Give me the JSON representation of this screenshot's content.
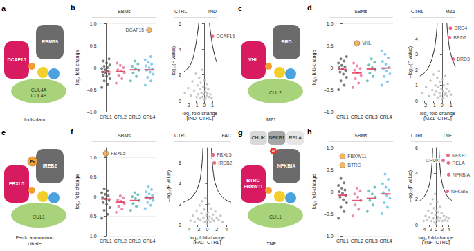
{
  "diagrams": [
    {
      "panel_label": "a",
      "scaffold": [
        "CUL4A",
        "CUL4B"
      ],
      "receptor": [
        "DCAF15"
      ],
      "substrate": "RBM39",
      "compound": "Indisulam"
    },
    {
      "panel_label": "c",
      "scaffold": [
        "CUL2"
      ],
      "receptor": [
        "VHL"
      ],
      "substrate": "BRD",
      "compound": "MZ1"
    },
    {
      "panel_label": "e",
      "scaffold": [
        "CUL1"
      ],
      "receptor": [
        "FBXL5"
      ],
      "substrate": "IREB2",
      "cofactor": "Fe",
      "compound": "Ferric ammonium citrate"
    },
    {
      "panel_label": "g",
      "scaffold": [
        "CUL1"
      ],
      "receptor": [
        "BTRC",
        "FBXW11"
      ],
      "substrate": "NFKBIA",
      "modification": "P",
      "partners": [
        "CHUK",
        "NFKB1",
        "RELA"
      ],
      "compound": "TNF"
    }
  ],
  "chart_data": [
    {
      "type": "strip",
      "panel_label": "b",
      "title": "SBMs",
      "ylabel": "log₂ fold-change",
      "categories": [
        "CRL1",
        "CRL2",
        "CRL3",
        "CRL4"
      ],
      "colors": [
        "#4d4d4d",
        "#e8638f",
        "#3fb0a6",
        "#5bbde3"
      ],
      "values": [
        [
          -0.45,
          -0.38,
          -0.3,
          -0.25,
          -0.2,
          -0.18,
          -0.15,
          -0.12,
          -0.1,
          -0.08,
          -0.05,
          -0.02,
          0,
          0.03,
          0.06,
          0.1,
          0.15,
          0.2
        ],
        [
          -0.35,
          -0.25,
          -0.18,
          -0.12,
          -0.08,
          -0.05,
          0,
          0.05,
          0.1
        ],
        [
          -0.3,
          -0.2,
          -0.12,
          -0.06,
          -0.02,
          0.03,
          0.08,
          0.15
        ],
        [
          -0.4,
          -0.3,
          -0.22,
          -0.15,
          -0.1,
          -0.06,
          -0.03,
          0,
          0.04,
          0.08,
          0.12,
          0.18,
          0.25
        ]
      ],
      "means": [
        -0.1,
        -0.09,
        -0.05,
        -0.05
      ],
      "highlights": [
        {
          "name": "DCAF15",
          "category": "CRL4",
          "value": 0.85,
          "color": "#f0a33a"
        }
      ],
      "ylim": [
        -1,
        1
      ],
      "yticks": [
        {
          "value": -1,
          "label": "–1.0"
        },
        {
          "value": -0.5,
          "label": "–0.5"
        },
        0,
        0.5,
        {
          "value": 1,
          "label": "1.0"
        }
      ],
      "grid": true
    },
    {
      "type": "scatter",
      "header": [
        "CTRL",
        "IND"
      ],
      "xlabel": "log₂ fold-change (IND–CTRL)",
      "ylabel": "–log₁₀(P value)",
      "color": "#bdbdbd",
      "x": [
        -2.3,
        -1.9,
        -1.6,
        -1.4,
        -1.2,
        -1.0,
        -0.9,
        -0.8,
        -0.7,
        -0.6,
        -0.5,
        -0.45,
        -0.4,
        -0.3,
        -0.25,
        -0.2,
        -0.1,
        -0.05,
        0,
        0.05,
        0.1,
        0.15,
        0.2,
        0.3,
        0.35,
        0.4,
        0.5,
        0.6,
        0.75,
        0.9
      ],
      "y": [
        0.6,
        1.0,
        0.4,
        1.5,
        0.8,
        2.1,
        0.3,
        1.2,
        0.5,
        1.8,
        0.9,
        0.2,
        1.4,
        0.6,
        2.4,
        0.3,
        1.1,
        0.5,
        0.1,
        1.6,
        0.7,
        0.2,
        1.0,
        0.4,
        1.3,
        0.6,
        0.9,
        0.3,
        0.5,
        0.2
      ],
      "threshold": {
        "left": {
          "x": [
            -2.5,
            -2,
            -1.5,
            -1.1,
            -0.8,
            -0.65
          ],
          "y": [
            2.2,
            2.5,
            3,
            4,
            5.2,
            6
          ]
        },
        "right": {
          "x": [
            0.65,
            0.8,
            1.1,
            1.5
          ],
          "y": [
            6,
            5.2,
            4,
            3
          ]
        }
      },
      "highlights": [
        {
          "name": "DCAF15",
          "x": 1.0,
          "y": 5.0,
          "color": "#e0456e"
        }
      ],
      "xlim": [
        -2.5,
        1.5
      ],
      "xticks": [
        {
          "value": -2,
          "label": "–2"
        },
        {
          "value": -1,
          "label": "–1"
        },
        0,
        1
      ],
      "ylim": [
        0,
        6
      ],
      "yticks": [
        0,
        2,
        4,
        6
      ]
    },
    {
      "type": "strip",
      "panel_label": "d",
      "title": "SBMs",
      "ylabel": "log₂ fold-change",
      "categories": [
        "CRL1",
        "CRL2",
        "CRL3",
        "CRL4"
      ],
      "colors": [
        "#4d4d4d",
        "#e8638f",
        "#3fb0a6",
        "#5bbde3"
      ],
      "values": [
        [
          -0.5,
          -0.4,
          -0.3,
          -0.22,
          -0.15,
          -0.1,
          -0.07,
          -0.03,
          0,
          0.02,
          0.05,
          0.1,
          0.15,
          0.2,
          0.25
        ],
        [
          -0.45,
          -0.35,
          -0.25,
          -0.18,
          -0.12,
          -0.06,
          -0.02,
          0.04,
          0.1
        ],
        [
          -0.3,
          -0.2,
          -0.12,
          -0.05,
          0,
          0.06,
          0.12,
          0.2
        ],
        [
          -0.4,
          -0.32,
          -0.2,
          -0.14,
          -0.08,
          -0.03,
          0.02,
          0.08,
          0.14,
          0.22,
          0.3,
          0.38
        ]
      ],
      "means": [
        -0.04,
        -0.12,
        -0.03,
        -0.01
      ],
      "highlights": [
        {
          "name": "VHL",
          "category": "CRL2",
          "value": 0.55,
          "color": "#f0a33a"
        }
      ],
      "ylim": [
        -1,
        1
      ],
      "yticks": [
        {
          "value": -1,
          "label": "–1.0"
        },
        {
          "value": -0.5,
          "label": "–0.5"
        },
        0,
        0.5,
        {
          "value": 1,
          "label": "1.0"
        }
      ],
      "grid": true
    },
    {
      "type": "scatter",
      "header": [
        "CTRL",
        "MZ1"
      ],
      "xlabel": "log₂ fold-change (MZ1–CTRL)",
      "ylabel": "–log₁₀(P value)",
      "color": "#bdbdbd",
      "x": [
        -2.2,
        -1.8,
        -1.5,
        -1.3,
        -1.1,
        -0.95,
        -0.85,
        -0.75,
        -0.65,
        -0.55,
        -0.5,
        -0.42,
        -0.35,
        -0.28,
        -0.2,
        -0.15,
        -0.08,
        0,
        0.05,
        0.1,
        0.15,
        0.22,
        0.28,
        0.35,
        0.42,
        0.5,
        0.58,
        0.65,
        0.8,
        1.0
      ],
      "y": [
        0.5,
        0.9,
        0.3,
        1.3,
        0.7,
        1.7,
        0.4,
        1.0,
        0.6,
        1.5,
        0.2,
        0.9,
        1.9,
        0.5,
        1.2,
        0.3,
        0.8,
        0.1,
        1.4,
        0.6,
        0.2,
        1.0,
        0.4,
        1.6,
        0.5,
        0.8,
        0.3,
        1.1,
        0.6,
        0.4
      ],
      "threshold": {
        "left": {
          "x": [
            -2.5,
            -2,
            -1.5,
            -1,
            -0.7,
            -0.55
          ],
          "y": [
            1.6,
            1.8,
            2.2,
            3,
            4,
            5
          ]
        },
        "right": {
          "x": [
            0.55,
            0.7,
            1,
            1.5
          ],
          "y": [
            5,
            4,
            3,
            2.2
          ]
        }
      },
      "highlights": [
        {
          "name": "BRD4",
          "x": 0.95,
          "y": 4.7,
          "color": "#e0456e"
        },
        {
          "name": "BRD2",
          "x": 0.85,
          "y": 4.1,
          "color": "#e0456e"
        },
        {
          "name": "BRD3",
          "x": 1.25,
          "y": 2.7,
          "color": "#e0456e"
        }
      ],
      "xlim": [
        -2.5,
        1.5
      ],
      "xticks": [
        {
          "value": -2,
          "label": "–2"
        },
        {
          "value": -1,
          "label": "–1"
        },
        0,
        1
      ],
      "ylim": [
        0,
        5
      ],
      "yticks": [
        0,
        1,
        2,
        3,
        4
      ]
    },
    {
      "type": "strip",
      "panel_label": "f",
      "title": "SBMs",
      "ylabel": "log₂ fold-change",
      "categories": [
        "CRL1",
        "CRL2",
        "CRL3",
        "CRL4"
      ],
      "colors": [
        "#4d4d4d",
        "#e8638f",
        "#3fb0a6",
        "#5bbde3"
      ],
      "values": [
        [
          -0.55,
          -0.45,
          -0.35,
          -0.28,
          -0.2,
          -0.15,
          -0.1,
          -0.06,
          -0.02,
          0.02,
          0.06,
          0.1,
          0.15,
          0.2
        ],
        [
          -0.4,
          -0.32,
          -0.25,
          -0.18,
          -0.12,
          -0.08,
          -0.03,
          0.02
        ],
        [
          -0.35,
          -0.25,
          -0.18,
          -0.1,
          -0.05,
          0,
          0.05,
          0.1
        ],
        [
          -0.3,
          -0.22,
          -0.15,
          -0.1,
          -0.05,
          -0.01,
          0.03,
          0.07,
          0.12,
          0.18,
          0.25
        ]
      ],
      "means": [
        -0.06,
        -0.14,
        -0.1,
        -0.03
      ],
      "highlights": [
        {
          "name": "FBXL5",
          "category": "CRL1",
          "value": 1.1,
          "color": "#f0a33a"
        }
      ],
      "ylim": [
        -1,
        1.25
      ],
      "yticks": [
        {
          "value": -1,
          "label": "–1.0"
        },
        {
          "value": -0.5,
          "label": "–0.5"
        },
        0,
        0.5,
        {
          "value": 1,
          "label": "1.0"
        }
      ],
      "grid": true
    },
    {
      "type": "scatter",
      "header": [
        "CTRL",
        "FAC"
      ],
      "xlabel": "log₂ fold-change (FAC–CTRL)",
      "ylabel": "–log₁₀(P value)",
      "color": "#bdbdbd",
      "x": [
        -3.5,
        -3,
        -2.6,
        -2.2,
        -1.9,
        -1.6,
        -1.4,
        -1.2,
        -1,
        -0.8,
        -0.65,
        -0.5,
        -0.35,
        -0.2,
        -0.1,
        0,
        0.1,
        0.2,
        0.35,
        0.5,
        0.65,
        0.8,
        1,
        1.2,
        1.4,
        1.7,
        2,
        2.4,
        2.8,
        3.2
      ],
      "y": [
        0.4,
        0.9,
        0.3,
        1.4,
        0.6,
        1.9,
        0.5,
        1.1,
        2.3,
        0.7,
        1.5,
        0.3,
        2.6,
        0.9,
        0.4,
        0.1,
        1.2,
        0.5,
        2.0,
        0.8,
        0.3,
        1.6,
        0.6,
        1.0,
        0.4,
        1.3,
        0.7,
        0.5,
        0.9,
        0.3
      ],
      "threshold": {
        "left": {
          "x": [
            -5,
            -4,
            -3,
            -2,
            -1.3,
            -0.9
          ],
          "y": [
            2.2,
            2.4,
            2.8,
            3.6,
            5,
            7.5
          ]
        },
        "right": {
          "x": [
            0.9,
            1.3,
            2,
            3,
            4,
            5
          ],
          "y": [
            7.5,
            5,
            3.6,
            2.8,
            2.4,
            2.2
          ]
        }
      },
      "highlights": [
        {
          "name": "FBXL5",
          "x": 1.2,
          "y": 6.8,
          "color": "#e0456e"
        },
        {
          "name": "IREB2",
          "x": 1.5,
          "y": 6.0,
          "color": "#e0456e"
        }
      ],
      "xlim": [
        -5,
        5
      ],
      "xticks": [
        {
          "value": -4,
          "label": "–4"
        },
        {
          "value": -2,
          "label": "–2"
        },
        0,
        2,
        4
      ],
      "ylim": [
        0,
        7.5
      ],
      "yticks": [
        0,
        2,
        4,
        6
      ]
    },
    {
      "type": "strip",
      "panel_label": "h",
      "title": "SBMs",
      "ylabel": "log₂ fold-change",
      "categories": [
        "CRL1",
        "CRL2",
        "CRL3",
        "CRL4"
      ],
      "colors": [
        "#4d4d4d",
        "#e8638f",
        "#3fb0a6",
        "#5bbde3"
      ],
      "values": [
        [
          -0.6,
          -0.45,
          -0.35,
          -0.25,
          -0.18,
          -0.12,
          -0.08,
          -0.04,
          0,
          0.04,
          0.08,
          0.14,
          0.2,
          0.3
        ],
        [
          -0.55,
          -0.4,
          -0.3,
          -0.2,
          -0.12,
          -0.05,
          0.02,
          0.08
        ],
        [
          -0.45,
          -0.3,
          -0.2,
          -0.12,
          -0.05,
          0.02,
          0.1
        ],
        [
          -0.5,
          -0.35,
          -0.25,
          -0.15,
          -0.08,
          -0.02,
          0.04,
          0.1,
          0.18,
          0.28,
          0.4
        ]
      ],
      "means": [
        -0.08,
        -0.2,
        -0.15,
        -0.05
      ],
      "highlights": [
        {
          "name": "FBXW11",
          "category": "CRL1",
          "value": 0.8,
          "color": "#f0a33a"
        },
        {
          "name": "BTRC",
          "category": "CRL1",
          "value": 0.6,
          "color": "#f0a33a"
        }
      ],
      "ylim": [
        -1,
        1
      ],
      "yticks": [
        {
          "value": -1,
          "label": "–1.0"
        },
        {
          "value": -0.5,
          "label": "–0.5"
        },
        0,
        0.5,
        {
          "value": 1,
          "label": "1.0"
        }
      ],
      "grid": true
    },
    {
      "type": "scatter",
      "header": [
        "CTRL",
        "TNF"
      ],
      "xlabel": "log₂ fold-change (TNF–CTRL)",
      "ylabel": "–log₁₀(P value)",
      "color": "#bdbdbd",
      "x": [
        -3.8,
        -3.2,
        -2.8,
        -2.4,
        -2,
        -1.7,
        -1.4,
        -1.2,
        -1,
        -0.8,
        -0.6,
        -0.45,
        -0.3,
        -0.15,
        0,
        0.15,
        0.3,
        0.45,
        0.6,
        0.8,
        1,
        1.2,
        1.5,
        1.8,
        2.1,
        2.5,
        2.9,
        3.3,
        3.7,
        4.1
      ],
      "y": [
        0.3,
        0.7,
        0.4,
        1.1,
        0.6,
        1.6,
        0.3,
        0.9,
        2.0,
        0.5,
        1.3,
        0.2,
        2.4,
        0.8,
        0.1,
        1.1,
        0.4,
        1.8,
        0.6,
        1.0,
        0.3,
        1.4,
        0.5,
        0.9,
        0.3,
        0.7,
        0.4,
        0.6,
        0.3,
        0.5
      ],
      "threshold": {
        "left": {
          "x": [
            -5,
            -4,
            -3,
            -2,
            -1.3,
            -1
          ],
          "y": [
            1.9,
            2.1,
            2.5,
            3.2,
            4.5,
            6
          ]
        },
        "right": {
          "x": [
            1,
            1.3,
            2,
            3,
            4,
            5
          ],
          "y": [
            6,
            4.5,
            3.2,
            2.5,
            2.1,
            1.9
          ]
        }
      },
      "highlights": [
        {
          "name": "CHUK",
          "x": 2.3,
          "y": 5.0,
          "color": "#e0456e"
        },
        {
          "name": "NFKB1",
          "x": 3.8,
          "y": 5.4,
          "color": "#e0456e"
        },
        {
          "name": "RELA",
          "x": 3.9,
          "y": 4.8,
          "color": "#e0456e"
        },
        {
          "name": "NFKBIA",
          "x": 4.0,
          "y": 3.9,
          "color": "#e0456e"
        },
        {
          "name": "NFKBIE",
          "x": 3.6,
          "y": 2.6,
          "color": "#e0456e"
        }
      ],
      "xlim": [
        -5,
        5
      ],
      "xticks": [
        {
          "value": -4,
          "label": "–4"
        },
        {
          "value": -2,
          "label": "–2"
        },
        0,
        2,
        4
      ],
      "ylim": [
        0,
        6
      ],
      "yticks": [
        0,
        2,
        4,
        6
      ]
    }
  ]
}
